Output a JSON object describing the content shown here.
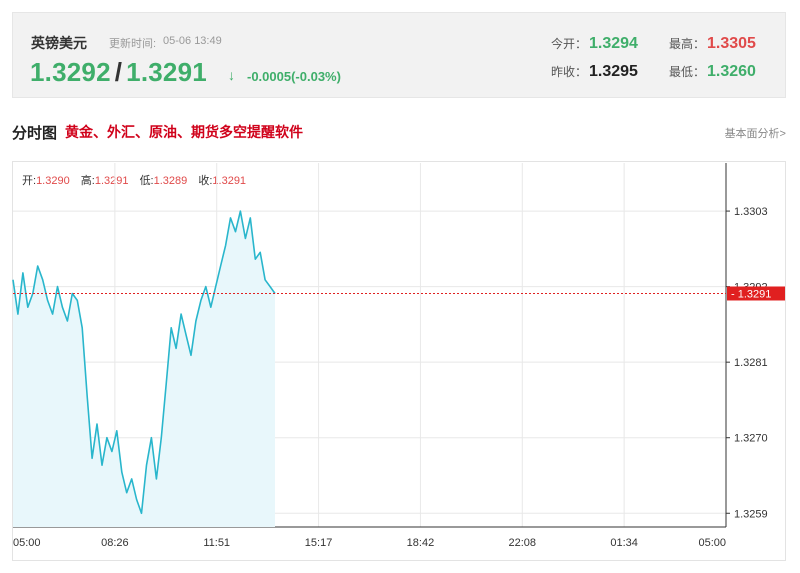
{
  "header": {
    "pair": "英镑美元",
    "update_label": "更新时间:",
    "update_time": "05-06 13:49",
    "bid": "1.3292",
    "ask": "1.3291",
    "change": "-0.0005(-0.03%)",
    "open_label": "今开：",
    "open": "1.3294",
    "high_label": "最高：",
    "high": "1.3305",
    "prev_close_label": "昨收：",
    "prev_close": "1.3295",
    "low_label": "最低：",
    "low": "1.3260",
    "arrow_icon": "down-arrow-icon"
  },
  "section": {
    "title": "分时图",
    "promo_link": "黄金、外汇、原油、期货多空提醒软件",
    "basic_link": "基本面分析>"
  },
  "ohlc": {
    "open_label": "开:",
    "open": "1.3290",
    "high_label": "高:",
    "high": "1.3291",
    "low_label": "低:",
    "low": "1.3289",
    "close_label": "收:",
    "close": "1.3291"
  },
  "colors": {
    "up": "#e04a4a",
    "down": "#3fae6a",
    "line": "#29b6cc",
    "fill": "#e8f7fb",
    "current": "#e02020"
  },
  "chart_data": {
    "type": "area",
    "x_ticks": [
      "05:00",
      "08:26",
      "11:51",
      "15:17",
      "18:42",
      "22:08",
      "01:34",
      "05:00"
    ],
    "y_ticks": [
      "1.3303",
      "1.3292",
      "1.3281",
      "1.3270",
      "1.3259"
    ],
    "ylim": [
      1.3257,
      1.331
    ],
    "current_price": "1.3291",
    "series": [
      {
        "values": [
          1.3293,
          1.3288,
          1.3294,
          1.3289,
          1.3291,
          1.3295,
          1.3293,
          1.329,
          1.3288,
          1.3292,
          1.3289,
          1.3287,
          1.3291,
          1.329,
          1.3286,
          1.3276,
          1.3267,
          1.3272,
          1.3266,
          1.327,
          1.3268,
          1.3271,
          1.3265,
          1.3262,
          1.3264,
          1.3261,
          1.3259,
          1.3266,
          1.327,
          1.3264,
          1.327,
          1.3278,
          1.3286,
          1.3283,
          1.3288,
          1.3285,
          1.3282,
          1.3287,
          1.329,
          1.3292,
          1.3289,
          1.3292,
          1.3295,
          1.3298,
          1.3302,
          1.33,
          1.3303,
          1.3299,
          1.3302,
          1.3296,
          1.3297,
          1.3293,
          1.3292,
          1.3291
        ]
      }
    ]
  }
}
